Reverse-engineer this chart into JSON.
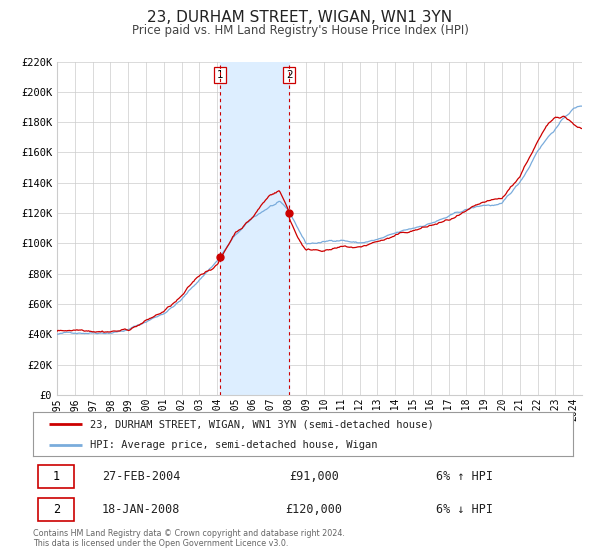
{
  "title": "23, DURHAM STREET, WIGAN, WN1 3YN",
  "subtitle": "Price paid vs. HM Land Registry's House Price Index (HPI)",
  "legend_line1": "23, DURHAM STREET, WIGAN, WN1 3YN (semi-detached house)",
  "legend_line2": "HPI: Average price, semi-detached house, Wigan",
  "footer1": "Contains HM Land Registry data © Crown copyright and database right 2024.",
  "footer2": "This data is licensed under the Open Government Licence v3.0.",
  "transaction1_date": "27-FEB-2004",
  "transaction1_price": "£91,000",
  "transaction1_hpi": "6% ↑ HPI",
  "transaction2_date": "18-JAN-2008",
  "transaction2_price": "£120,000",
  "transaction2_hpi": "6% ↓ HPI",
  "transaction1_x": 2004.16,
  "transaction1_y": 91000,
  "transaction2_x": 2008.05,
  "transaction2_y": 120000,
  "vline1_x": 2004.16,
  "vline2_x": 2008.05,
  "shade_x1": 2004.16,
  "shade_x2": 2008.05,
  "ylim": [
    0,
    220000
  ],
  "xlim_start": 1995,
  "xlim_end": 2024.5,
  "yticks": [
    0,
    20000,
    40000,
    60000,
    80000,
    100000,
    120000,
    140000,
    160000,
    180000,
    200000,
    220000
  ],
  "ytick_labels": [
    "£0",
    "£20K",
    "£40K",
    "£60K",
    "£80K",
    "£100K",
    "£120K",
    "£140K",
    "£160K",
    "£180K",
    "£200K",
    "£220K"
  ],
  "xticks": [
    1995,
    1996,
    1997,
    1998,
    1999,
    2000,
    2001,
    2002,
    2003,
    2004,
    2005,
    2006,
    2007,
    2008,
    2009,
    2010,
    2011,
    2012,
    2013,
    2014,
    2015,
    2016,
    2017,
    2018,
    2019,
    2020,
    2021,
    2022,
    2023,
    2024
  ],
  "red_line_color": "#cc0000",
  "blue_line_color": "#7aacdc",
  "shade_color": "#ddeeff",
  "vline_color": "#cc0000",
  "dot_color": "#cc0000",
  "background_color": "#ffffff",
  "grid_color": "#cccccc",
  "title_fontsize": 11,
  "subtitle_fontsize": 8.5
}
